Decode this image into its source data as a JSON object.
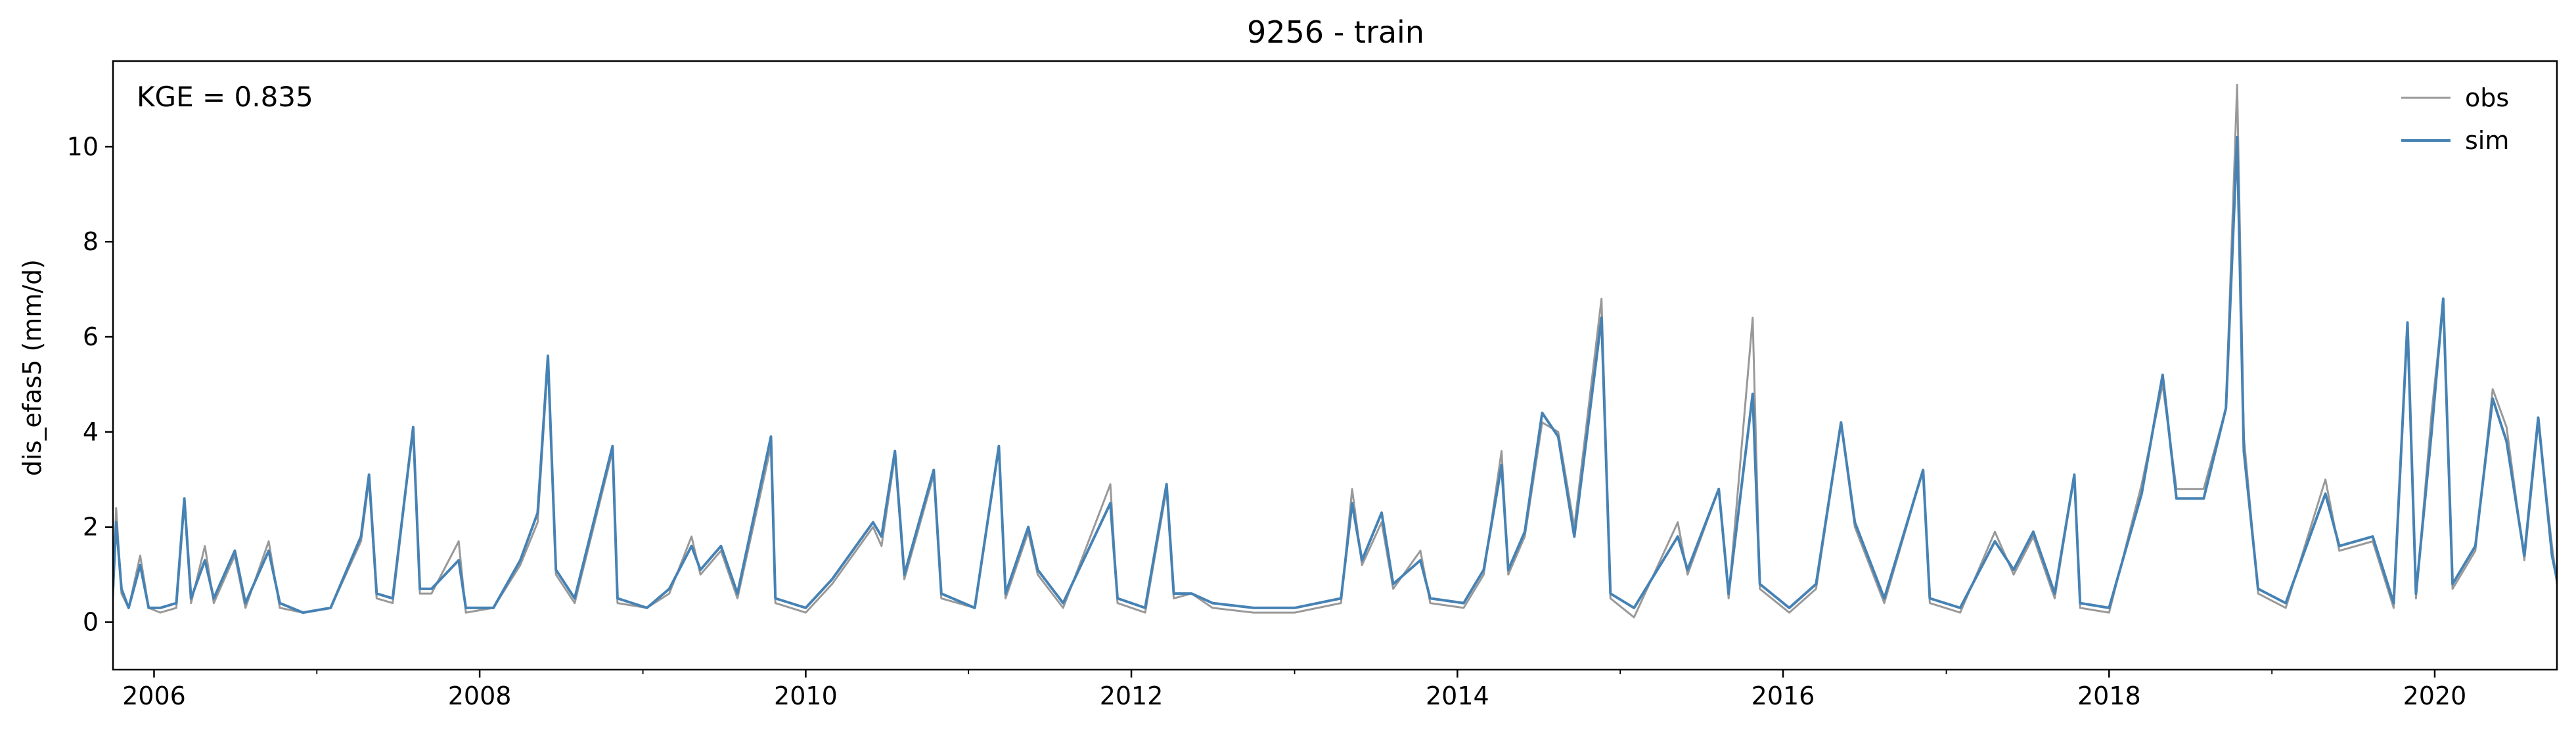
{
  "chart_data": {
    "type": "line",
    "title": "9256 - train",
    "xlabel": "",
    "ylabel": "dis_efas5 (mm/d)",
    "annotation": "KGE = 0.835",
    "x_range": [
      "2005-10-01",
      "2020-10-01"
    ],
    "ylim": [
      -1.0,
      11.8
    ],
    "x_ticks": [
      {
        "date": "2006-01-01",
        "label": "2006"
      },
      {
        "date": "2008-01-01",
        "label": "2008"
      },
      {
        "date": "2010-01-01",
        "label": "2010"
      },
      {
        "date": "2012-01-01",
        "label": "2012"
      },
      {
        "date": "2014-01-01",
        "label": "2014"
      },
      {
        "date": "2016-01-01",
        "label": "2016"
      },
      {
        "date": "2018-01-01",
        "label": "2018"
      },
      {
        "date": "2020-01-01",
        "label": "2020"
      }
    ],
    "y_ticks": [
      0,
      2,
      4,
      6,
      8,
      10
    ],
    "legend": {
      "position": "top-right",
      "entries": [
        "obs",
        "sim"
      ]
    },
    "grid": false,
    "series": [
      {
        "name": "obs",
        "color": "#999999",
        "points": [
          [
            "2005-10-01",
            0.5
          ],
          [
            "2005-10-08",
            2.4
          ],
          [
            "2005-10-20",
            0.6
          ],
          [
            "2005-11-05",
            0.3
          ],
          [
            "2005-12-01",
            1.4
          ],
          [
            "2005-12-20",
            0.3
          ],
          [
            "2006-01-15",
            0.2
          ],
          [
            "2006-02-20",
            0.3
          ],
          [
            "2006-03-10",
            2.5
          ],
          [
            "2006-03-25",
            0.4
          ],
          [
            "2006-04-25",
            1.6
          ],
          [
            "2006-05-15",
            0.4
          ],
          [
            "2006-07-01",
            1.4
          ],
          [
            "2006-07-25",
            0.3
          ],
          [
            "2006-09-15",
            1.7
          ],
          [
            "2006-10-10",
            0.3
          ],
          [
            "2006-12-01",
            0.2
          ],
          [
            "2007-02-01",
            0.3
          ],
          [
            "2007-04-10",
            1.7
          ],
          [
            "2007-04-28",
            3.0
          ],
          [
            "2007-05-15",
            0.5
          ],
          [
            "2007-06-20",
            0.4
          ],
          [
            "2007-08-05",
            4.1
          ],
          [
            "2007-08-20",
            0.6
          ],
          [
            "2007-09-15",
            0.6
          ],
          [
            "2007-11-15",
            1.7
          ],
          [
            "2007-12-01",
            0.2
          ],
          [
            "2008-02-01",
            0.3
          ],
          [
            "2008-04-01",
            1.2
          ],
          [
            "2008-05-10",
            2.1
          ],
          [
            "2008-06-02",
            5.5
          ],
          [
            "2008-06-20",
            1.0
          ],
          [
            "2008-08-01",
            0.4
          ],
          [
            "2008-10-25",
            3.6
          ],
          [
            "2008-11-05",
            0.4
          ],
          [
            "2009-01-10",
            0.3
          ],
          [
            "2009-03-01",
            0.6
          ],
          [
            "2009-04-20",
            1.8
          ],
          [
            "2009-05-10",
            1.0
          ],
          [
            "2009-06-25",
            1.5
          ],
          [
            "2009-08-01",
            0.5
          ],
          [
            "2009-10-15",
            3.7
          ],
          [
            "2009-10-25",
            0.4
          ],
          [
            "2010-01-01",
            0.2
          ],
          [
            "2010-03-01",
            0.8
          ],
          [
            "2010-06-01",
            2.0
          ],
          [
            "2010-06-20",
            1.6
          ],
          [
            "2010-07-20",
            3.5
          ],
          [
            "2010-08-10",
            0.9
          ],
          [
            "2010-10-15",
            3.1
          ],
          [
            "2010-11-01",
            0.5
          ],
          [
            "2011-01-15",
            0.3
          ],
          [
            "2011-03-10",
            3.7
          ],
          [
            "2011-03-25",
            0.5
          ],
          [
            "2011-05-15",
            1.9
          ],
          [
            "2011-06-05",
            1.0
          ],
          [
            "2011-08-01",
            0.3
          ],
          [
            "2011-11-15",
            2.9
          ],
          [
            "2011-12-01",
            0.4
          ],
          [
            "2012-02-01",
            0.2
          ],
          [
            "2012-03-20",
            2.8
          ],
          [
            "2012-04-05",
            0.5
          ],
          [
            "2012-05-15",
            0.6
          ],
          [
            "2012-07-01",
            0.3
          ],
          [
            "2012-10-01",
            0.2
          ],
          [
            "2013-01-01",
            0.2
          ],
          [
            "2013-04-15",
            0.4
          ],
          [
            "2013-05-10",
            2.8
          ],
          [
            "2013-06-01",
            1.2
          ],
          [
            "2013-07-15",
            2.1
          ],
          [
            "2013-08-10",
            0.7
          ],
          [
            "2013-10-10",
            1.5
          ],
          [
            "2013-11-01",
            0.4
          ],
          [
            "2014-01-15",
            0.3
          ],
          [
            "2014-03-01",
            1.0
          ],
          [
            "2014-04-10",
            3.6
          ],
          [
            "2014-04-25",
            1.0
          ],
          [
            "2014-06-01",
            1.8
          ],
          [
            "2014-07-10",
            4.2
          ],
          [
            "2014-08-15",
            4.0
          ],
          [
            "2014-09-20",
            2.0
          ],
          [
            "2014-11-20",
            6.8
          ],
          [
            "2014-12-10",
            0.5
          ],
          [
            "2015-02-01",
            0.1
          ],
          [
            "2015-05-10",
            2.1
          ],
          [
            "2015-06-01",
            1.0
          ],
          [
            "2015-08-10",
            2.8
          ],
          [
            "2015-09-01",
            0.5
          ],
          [
            "2015-10-25",
            6.4
          ],
          [
            "2015-11-10",
            0.7
          ],
          [
            "2016-01-15",
            0.2
          ],
          [
            "2016-03-15",
            0.7
          ],
          [
            "2016-05-10",
            4.2
          ],
          [
            "2016-06-10",
            2.0
          ],
          [
            "2016-08-15",
            0.4
          ],
          [
            "2016-11-10",
            3.2
          ],
          [
            "2016-11-25",
            0.4
          ],
          [
            "2017-02-01",
            0.2
          ],
          [
            "2017-04-20",
            1.9
          ],
          [
            "2017-06-01",
            1.0
          ],
          [
            "2017-07-15",
            1.8
          ],
          [
            "2017-09-01",
            0.5
          ],
          [
            "2017-10-15",
            3.1
          ],
          [
            "2017-10-28",
            0.3
          ],
          [
            "2018-01-01",
            0.2
          ],
          [
            "2018-03-15",
            2.9
          ],
          [
            "2018-05-01",
            5.0
          ],
          [
            "2018-06-01",
            2.8
          ],
          [
            "2018-08-01",
            2.8
          ],
          [
            "2018-09-20",
            4.5
          ],
          [
            "2018-10-15",
            11.3
          ],
          [
            "2018-10-30",
            3.9
          ],
          [
            "2018-12-01",
            0.6
          ],
          [
            "2019-02-01",
            0.3
          ],
          [
            "2019-05-01",
            3.0
          ],
          [
            "2019-06-01",
            1.5
          ],
          [
            "2019-08-15",
            1.7
          ],
          [
            "2019-10-01",
            0.3
          ],
          [
            "2019-11-01",
            6.2
          ],
          [
            "2019-11-20",
            0.5
          ],
          [
            "2019-12-25",
            4.4
          ],
          [
            "2020-01-20",
            6.7
          ],
          [
            "2020-02-10",
            0.7
          ],
          [
            "2020-04-01",
            1.5
          ],
          [
            "2020-05-10",
            4.9
          ],
          [
            "2020-06-10",
            4.1
          ],
          [
            "2020-07-20",
            1.3
          ],
          [
            "2020-08-20",
            4.2
          ],
          [
            "2020-09-20",
            1.6
          ],
          [
            "2020-10-01",
            0.8
          ]
        ]
      },
      {
        "name": "sim",
        "color": "#4682b4",
        "points": [
          [
            "2005-10-01",
            0.7
          ],
          [
            "2005-10-08",
            2.1
          ],
          [
            "2005-10-20",
            0.7
          ],
          [
            "2005-11-05",
            0.3
          ],
          [
            "2005-12-01",
            1.2
          ],
          [
            "2005-12-20",
            0.3
          ],
          [
            "2006-01-15",
            0.3
          ],
          [
            "2006-02-20",
            0.4
          ],
          [
            "2006-03-10",
            2.6
          ],
          [
            "2006-03-25",
            0.5
          ],
          [
            "2006-04-25",
            1.3
          ],
          [
            "2006-05-15",
            0.5
          ],
          [
            "2006-07-01",
            1.5
          ],
          [
            "2006-07-25",
            0.4
          ],
          [
            "2006-09-15",
            1.5
          ],
          [
            "2006-10-10",
            0.4
          ],
          [
            "2006-12-01",
            0.2
          ],
          [
            "2007-02-01",
            0.3
          ],
          [
            "2007-04-10",
            1.8
          ],
          [
            "2007-04-28",
            3.1
          ],
          [
            "2007-05-15",
            0.6
          ],
          [
            "2007-06-20",
            0.5
          ],
          [
            "2007-08-05",
            4.1
          ],
          [
            "2007-08-20",
            0.7
          ],
          [
            "2007-09-15",
            0.7
          ],
          [
            "2007-11-15",
            1.3
          ],
          [
            "2007-12-01",
            0.3
          ],
          [
            "2008-02-01",
            0.3
          ],
          [
            "2008-04-01",
            1.3
          ],
          [
            "2008-05-10",
            2.3
          ],
          [
            "2008-06-02",
            5.6
          ],
          [
            "2008-06-20",
            1.1
          ],
          [
            "2008-08-01",
            0.5
          ],
          [
            "2008-10-25",
            3.7
          ],
          [
            "2008-11-05",
            0.5
          ],
          [
            "2009-01-10",
            0.3
          ],
          [
            "2009-03-01",
            0.7
          ],
          [
            "2009-04-20",
            1.6
          ],
          [
            "2009-05-10",
            1.1
          ],
          [
            "2009-06-25",
            1.6
          ],
          [
            "2009-08-01",
            0.6
          ],
          [
            "2009-10-15",
            3.9
          ],
          [
            "2009-10-25",
            0.5
          ],
          [
            "2010-01-01",
            0.3
          ],
          [
            "2010-03-01",
            0.9
          ],
          [
            "2010-06-01",
            2.1
          ],
          [
            "2010-06-20",
            1.8
          ],
          [
            "2010-07-20",
            3.6
          ],
          [
            "2010-08-10",
            1.0
          ],
          [
            "2010-10-15",
            3.2
          ],
          [
            "2010-11-01",
            0.6
          ],
          [
            "2011-01-15",
            0.3
          ],
          [
            "2011-03-10",
            3.7
          ],
          [
            "2011-03-25",
            0.6
          ],
          [
            "2011-05-15",
            2.0
          ],
          [
            "2011-06-05",
            1.1
          ],
          [
            "2011-08-01",
            0.4
          ],
          [
            "2011-11-15",
            2.5
          ],
          [
            "2011-12-01",
            0.5
          ],
          [
            "2012-02-01",
            0.3
          ],
          [
            "2012-03-20",
            2.9
          ],
          [
            "2012-04-05",
            0.6
          ],
          [
            "2012-05-15",
            0.6
          ],
          [
            "2012-07-01",
            0.4
          ],
          [
            "2012-10-01",
            0.3
          ],
          [
            "2013-01-01",
            0.3
          ],
          [
            "2013-04-15",
            0.5
          ],
          [
            "2013-05-10",
            2.5
          ],
          [
            "2013-06-01",
            1.3
          ],
          [
            "2013-07-15",
            2.3
          ],
          [
            "2013-08-10",
            0.8
          ],
          [
            "2013-10-10",
            1.3
          ],
          [
            "2013-11-01",
            0.5
          ],
          [
            "2014-01-15",
            0.4
          ],
          [
            "2014-03-01",
            1.1
          ],
          [
            "2014-04-10",
            3.3
          ],
          [
            "2014-04-25",
            1.1
          ],
          [
            "2014-06-01",
            1.9
          ],
          [
            "2014-07-10",
            4.4
          ],
          [
            "2014-08-15",
            3.9
          ],
          [
            "2014-09-20",
            1.8
          ],
          [
            "2014-11-20",
            6.4
          ],
          [
            "2014-12-10",
            0.6
          ],
          [
            "2015-02-01",
            0.3
          ],
          [
            "2015-05-10",
            1.8
          ],
          [
            "2015-06-01",
            1.1
          ],
          [
            "2015-08-10",
            2.8
          ],
          [
            "2015-09-01",
            0.6
          ],
          [
            "2015-10-25",
            4.8
          ],
          [
            "2015-11-10",
            0.8
          ],
          [
            "2016-01-15",
            0.3
          ],
          [
            "2016-03-15",
            0.8
          ],
          [
            "2016-05-10",
            4.2
          ],
          [
            "2016-06-10",
            2.1
          ],
          [
            "2016-08-15",
            0.5
          ],
          [
            "2016-11-10",
            3.2
          ],
          [
            "2016-11-25",
            0.5
          ],
          [
            "2017-02-01",
            0.3
          ],
          [
            "2017-04-20",
            1.7
          ],
          [
            "2017-06-01",
            1.1
          ],
          [
            "2017-07-15",
            1.9
          ],
          [
            "2017-09-01",
            0.6
          ],
          [
            "2017-10-15",
            3.1
          ],
          [
            "2017-10-28",
            0.4
          ],
          [
            "2018-01-01",
            0.3
          ],
          [
            "2018-03-15",
            2.7
          ],
          [
            "2018-05-01",
            5.2
          ],
          [
            "2018-06-01",
            2.6
          ],
          [
            "2018-08-01",
            2.6
          ],
          [
            "2018-09-20",
            4.5
          ],
          [
            "2018-10-15",
            10.2
          ],
          [
            "2018-10-30",
            3.6
          ],
          [
            "2018-12-01",
            0.7
          ],
          [
            "2019-02-01",
            0.4
          ],
          [
            "2019-05-01",
            2.7
          ],
          [
            "2019-06-01",
            1.6
          ],
          [
            "2019-08-15",
            1.8
          ],
          [
            "2019-10-01",
            0.4
          ],
          [
            "2019-11-01",
            6.3
          ],
          [
            "2019-11-20",
            0.6
          ],
          [
            "2019-12-25",
            4.0
          ],
          [
            "2020-01-20",
            6.8
          ],
          [
            "2020-02-10",
            0.8
          ],
          [
            "2020-04-01",
            1.6
          ],
          [
            "2020-05-10",
            4.7
          ],
          [
            "2020-06-10",
            3.8
          ],
          [
            "2020-07-20",
            1.4
          ],
          [
            "2020-08-20",
            4.3
          ],
          [
            "2020-09-20",
            1.4
          ],
          [
            "2020-10-01",
            0.9
          ]
        ]
      }
    ]
  }
}
